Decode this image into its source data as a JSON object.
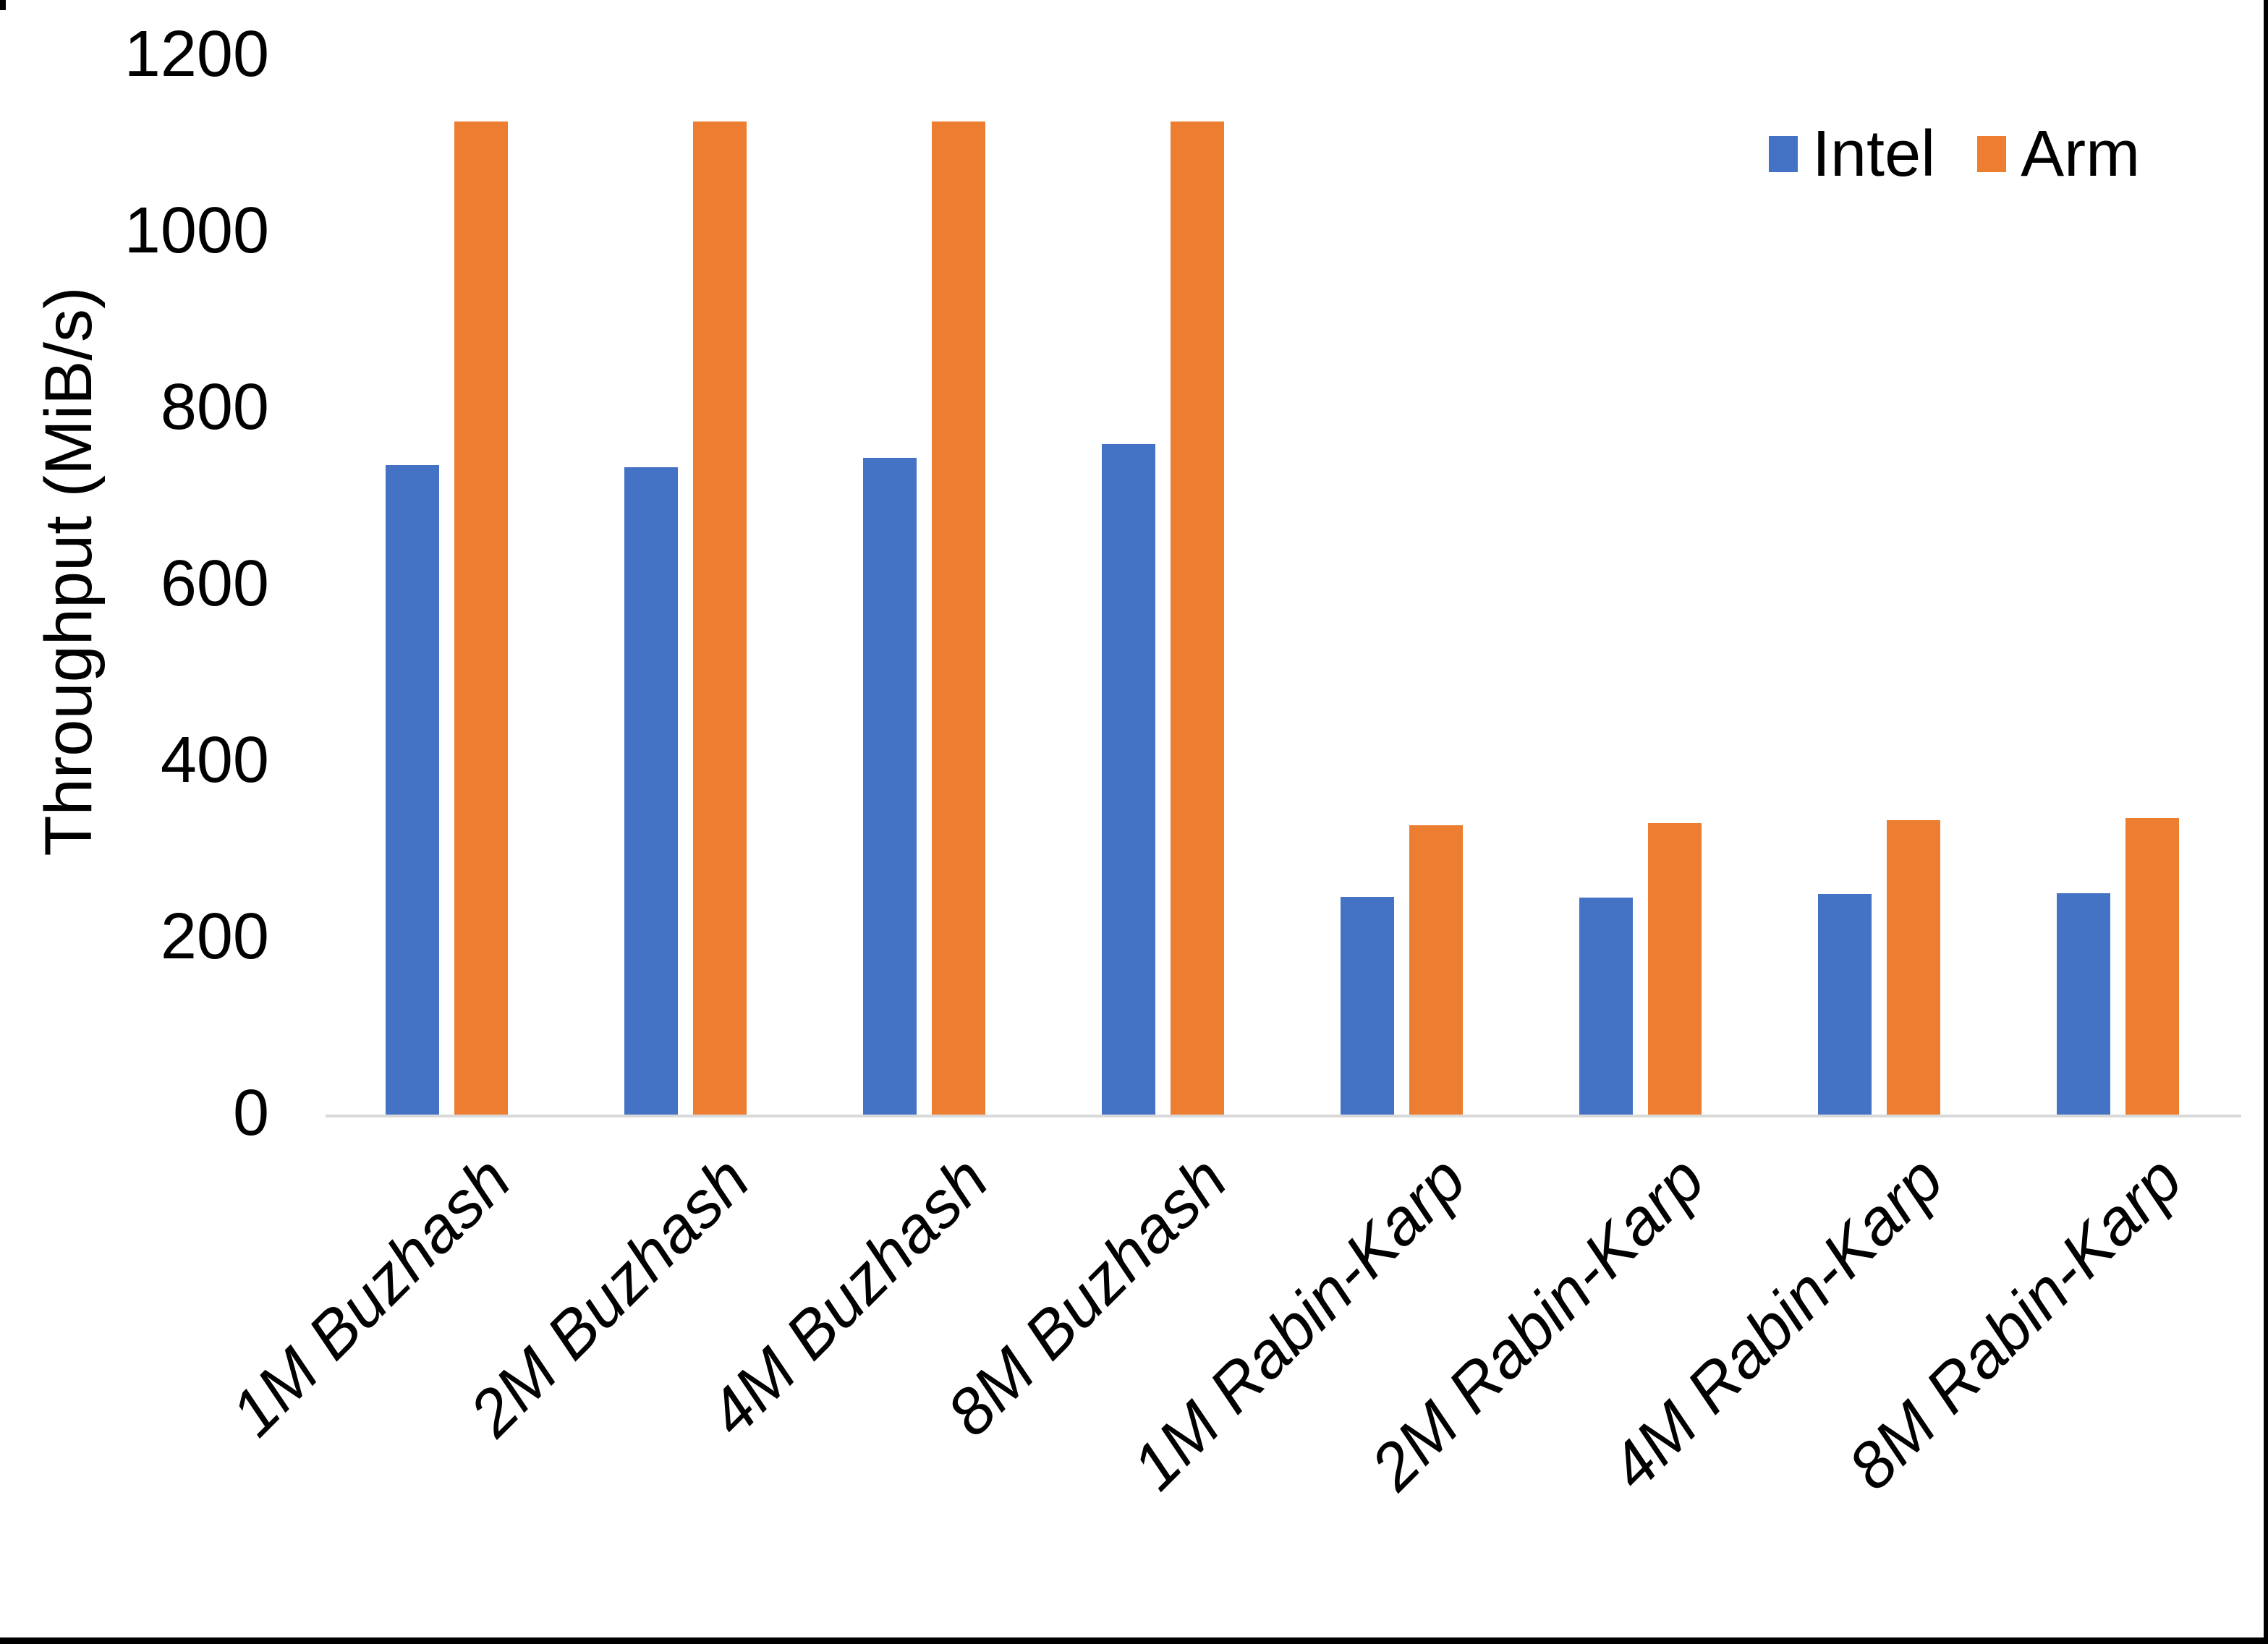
{
  "chart_data": {
    "type": "bar",
    "title": "",
    "ylabel": "Throughput (MiB/s)",
    "xlabel": "",
    "ylim": [
      0,
      1200
    ],
    "yticks": [
      0,
      200,
      400,
      600,
      800,
      1000,
      1200
    ],
    "grid": false,
    "legend_position": "top-right",
    "categories": [
      "1M Buzhash",
      "2M Buzhash",
      "4M Buzhash",
      "8M Buzhash",
      "1M Rabin-Karp",
      "2M Rabin-Karp",
      "4M Rabin-Karp",
      "8M Rabin-Karp"
    ],
    "series": [
      {
        "name": "Intel",
        "color": "#4472C4",
        "values": [
          736,
          734,
          744,
          760,
          247,
          246,
          250,
          251
        ]
      },
      {
        "name": "Arm",
        "color": "#ED7D31",
        "values": [
          1125,
          1125,
          1125,
          1125,
          328,
          330,
          334,
          336
        ]
      }
    ]
  },
  "colors": {
    "background": "#FFFFFF",
    "axis_line": "#D9D9D9",
    "text": "#000000",
    "frame": "#000000"
  }
}
